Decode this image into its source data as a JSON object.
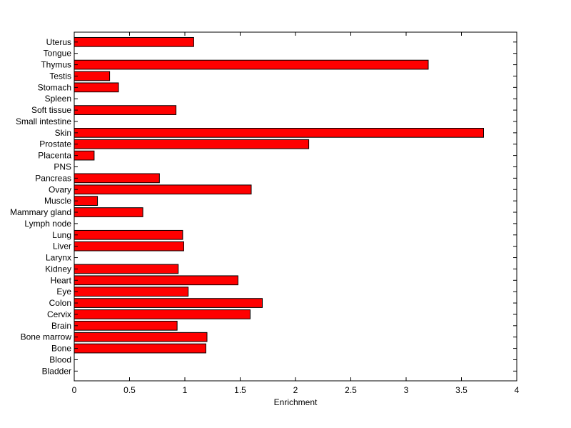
{
  "chart_data": {
    "type": "bar",
    "orientation": "horizontal",
    "categories": [
      "Bladder",
      "Blood",
      "Bone",
      "Bone marrow",
      "Brain",
      "Cervix",
      "Colon",
      "Eye",
      "Heart",
      "Kidney",
      "Larynx",
      "Liver",
      "Lung",
      "Lymph node",
      "Mammary gland",
      "Muscle",
      "Ovary",
      "Pancreas",
      "PNS",
      "Placenta",
      "Prostate",
      "Skin",
      "Small intestine",
      "Soft tissue",
      "Spleen",
      "Stomach",
      "Testis",
      "Thymus",
      "Tongue",
      "Uterus"
    ],
    "values": [
      0,
      0,
      1.19,
      1.2,
      0.93,
      1.59,
      1.7,
      1.03,
      1.48,
      0.94,
      0,
      0.99,
      0.98,
      0,
      0.62,
      0.21,
      1.6,
      0.77,
      0,
      0.18,
      2.12,
      3.7,
      0,
      0.92,
      0,
      0.4,
      0.32,
      3.2,
      0,
      1.08
    ],
    "xlabel": "Enrichment",
    "ylabel": "",
    "xlim": [
      0,
      4
    ],
    "xticks": [
      0,
      0.5,
      1,
      1.5,
      2,
      2.5,
      3,
      3.5,
      4
    ],
    "xtick_labels": [
      "0",
      "0.5",
      "1",
      "1.5",
      "2",
      "2.5",
      "3",
      "3.5",
      "4"
    ],
    "grid": false,
    "bar_color": "#ff0000",
    "edge_color": "#000000"
  }
}
